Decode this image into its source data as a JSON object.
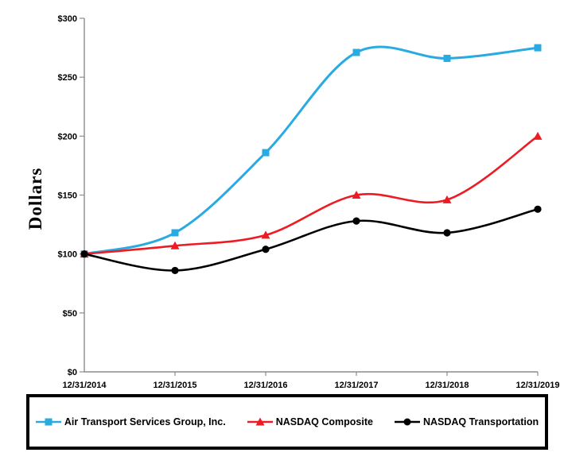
{
  "chart_data": {
    "type": "line",
    "title": "",
    "xlabel": "",
    "ylabel": "Dollars",
    "x_categories": [
      "12/31/2014",
      "12/31/2015",
      "12/31/2016",
      "12/31/2017",
      "12/31/2018",
      "12/31/2019"
    ],
    "y_ticks": [
      "$300",
      "$250",
      "$200",
      "$150",
      "$100",
      "$50",
      "$0"
    ],
    "ylim": [
      0,
      300
    ],
    "y_tick_step": 50,
    "grid": false,
    "line_style": "smooth",
    "legend_position": "bottom-boxed",
    "axis_color": "#8c8c8c",
    "series": [
      {
        "name": "Air Transport Services Group, Inc.",
        "color": "#29ABE2",
        "marker": "square",
        "values": [
          100,
          118,
          186,
          271,
          266,
          275
        ]
      },
      {
        "name": "NASDAQ Composite",
        "color": "#ED1C24",
        "marker": "triangle",
        "values": [
          100,
          107,
          116,
          150,
          146,
          200
        ]
      },
      {
        "name": "NASDAQ Transportation",
        "color": "#000000",
        "marker": "circle",
        "values": [
          100,
          86,
          104,
          128,
          118,
          138
        ]
      }
    ]
  }
}
